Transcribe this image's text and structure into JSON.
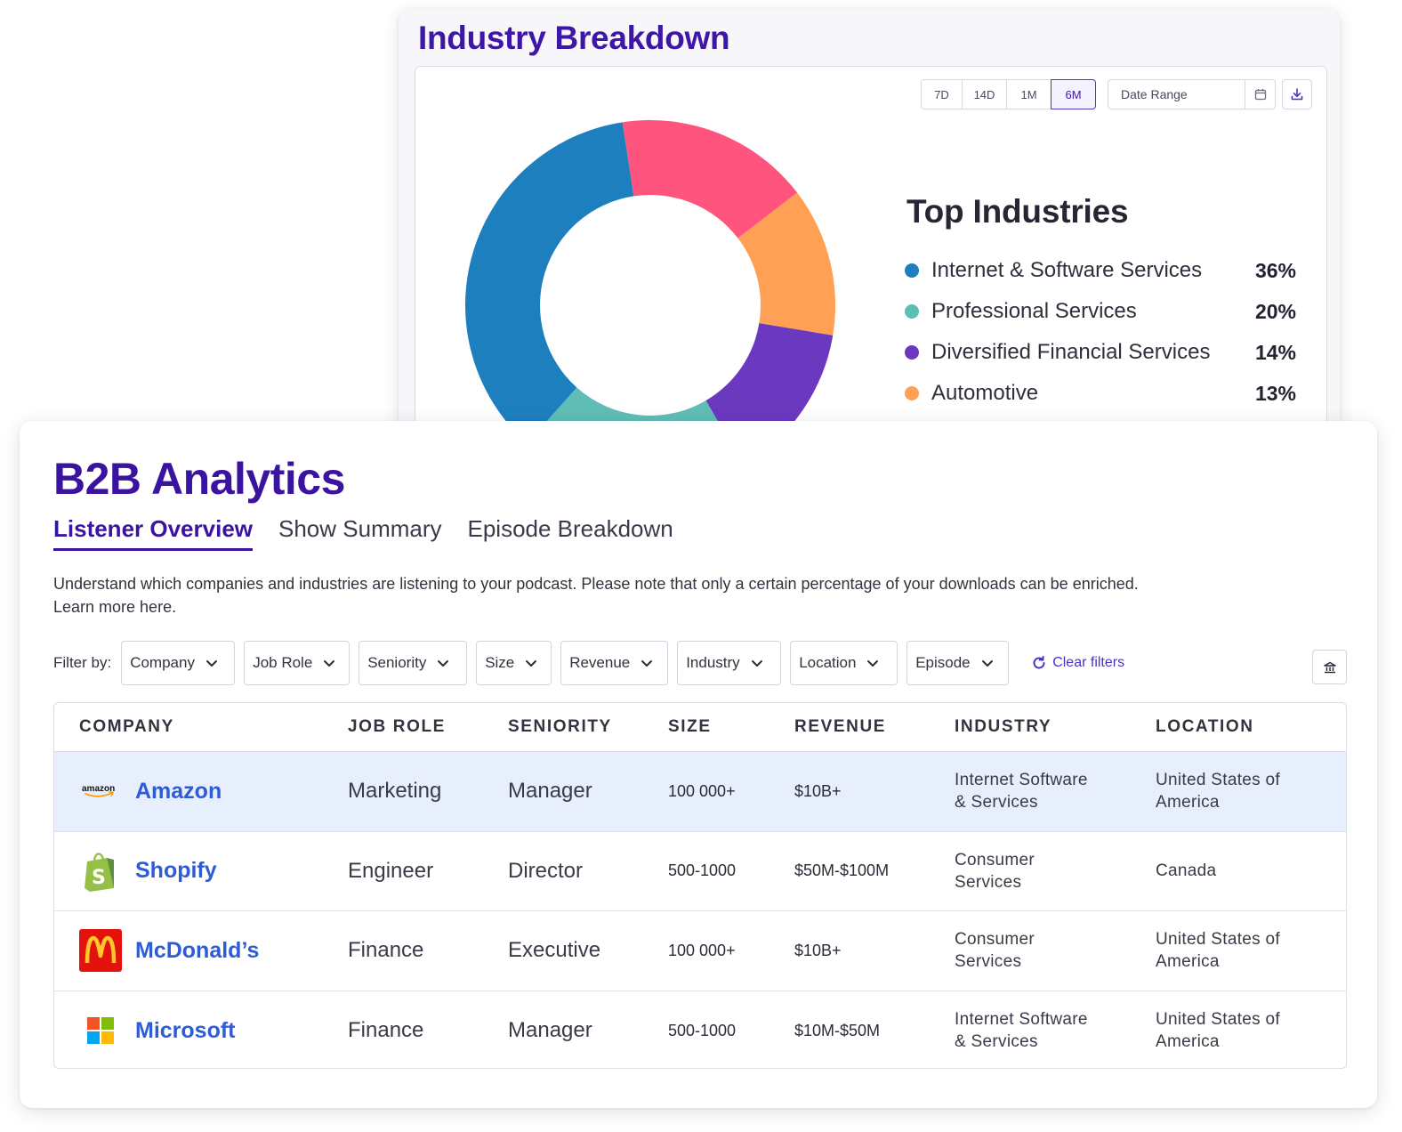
{
  "industry_breakdown": {
    "title": "Industry Breakdown",
    "ranges": [
      "7D",
      "14D",
      "1M",
      "6M"
    ],
    "active_range": "6M",
    "date_range_placeholder": "Date Range",
    "top_industries_title": "Top Industries",
    "legend": [
      {
        "label": "Internet & Software Services",
        "pct": "36%",
        "color": "#1e7fbf"
      },
      {
        "label": "Professional Services",
        "pct": "20%",
        "color": "#5fbdb5"
      },
      {
        "label": "Diversified Financial Services",
        "pct": "14%",
        "color": "#6b39bf"
      },
      {
        "label": "Automotive",
        "pct": "13%",
        "color": "#ffa054"
      }
    ]
  },
  "chart_data": {
    "type": "pie",
    "donut": true,
    "slices": [
      {
        "name": "Internet & Software Services",
        "value": 36,
        "color": "#1e7fbf"
      },
      {
        "name": "Professional Services",
        "value": 20,
        "color": "#5fbdb5"
      },
      {
        "name": "Diversified Financial Services",
        "value": 14,
        "color": "#6b39bf"
      },
      {
        "name": "Automotive",
        "value": 13,
        "color": "#ffa054"
      },
      {
        "name": "",
        "value": 17,
        "color": "#ff547e"
      }
    ]
  },
  "b2b": {
    "title": "B2B Analytics",
    "tabs": [
      "Listener Overview",
      "Show Summary",
      "Episode Breakdown"
    ],
    "description_line1": "Understand which companies and industries are listening to your podcast. Please note that only a certain percentage of your downloads can be enriched.",
    "description_line2": "Learn more here.",
    "filter_label": "Filter by:",
    "filters": [
      "Company",
      "Job Role",
      "Seniority",
      "Size",
      "Revenue",
      "Industry",
      "Location",
      "Episode"
    ],
    "clear_filters": "Clear filters",
    "columns": [
      "COMPANY",
      "JOB ROLE",
      "SENIORITY",
      "SIZE",
      "REVENUE",
      "INDUSTRY",
      "LOCATION"
    ],
    "rows": [
      {
        "company": "Amazon",
        "logo": "amazon-logo",
        "role": "Marketing",
        "seniority": "Manager",
        "size": "100 000+",
        "revenue": "$10B+",
        "industry_l1": "Internet Software",
        "industry_l2": "& Services",
        "location_l1": "United States of",
        "location_l2": "America"
      },
      {
        "company": "Shopify",
        "logo": "shopify-logo",
        "role": "Engineer",
        "seniority": "Director",
        "size": "500-1000",
        "revenue": "$50M-$100M",
        "industry_l1": "Consumer",
        "industry_l2": "Services",
        "location_l1": "Canada",
        "location_l2": ""
      },
      {
        "company": "McDonald’s",
        "logo": "mcdonalds-logo",
        "role": "Finance",
        "seniority": "Executive",
        "size": "100 000+",
        "revenue": "$10B+",
        "industry_l1": "Consumer",
        "industry_l2": "Services",
        "location_l1": "United States of",
        "location_l2": "America"
      },
      {
        "company": "Microsoft",
        "logo": "microsoft-logo",
        "role": "Finance",
        "seniority": "Manager",
        "size": "500-1000",
        "revenue": "$10M-$50M",
        "industry_l1": "Internet Software",
        "industry_l2": "& Services",
        "location_l1": "United States of",
        "location_l2": "America"
      }
    ]
  }
}
